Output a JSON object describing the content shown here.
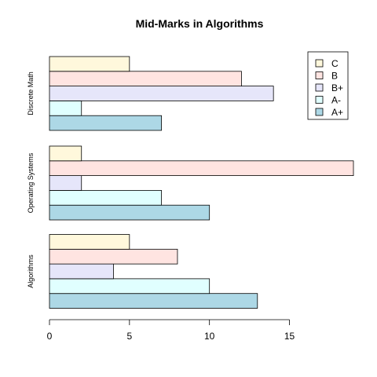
{
  "chart_data": {
    "type": "bar",
    "orientation": "horizontal",
    "title": "Mid-Marks in Algorithms",
    "xlabel": "",
    "ylabel": "",
    "groups": [
      "Algorithms",
      "Operating Systems",
      "Discrete Math"
    ],
    "series": [
      {
        "name": "A+",
        "color": "#ADD8E6",
        "values": [
          13,
          10,
          7
        ]
      },
      {
        "name": "A-",
        "color": "#E0FFFF",
        "values": [
          10,
          7,
          2
        ]
      },
      {
        "name": "B+",
        "color": "#E6E6FA",
        "values": [
          4,
          2,
          14
        ]
      },
      {
        "name": "B",
        "color": "#FFE4E1",
        "values": [
          8,
          19,
          12
        ]
      },
      {
        "name": "C",
        "color": "#FFF8DC",
        "values": [
          5,
          2,
          5
        ]
      }
    ],
    "xlim": [
      0,
      19
    ],
    "xticks": [
      0,
      5,
      10,
      15
    ],
    "legend_order": [
      "C",
      "B",
      "B+",
      "A-",
      "A+"
    ],
    "legend_position": "top-right",
    "grid": false
  }
}
